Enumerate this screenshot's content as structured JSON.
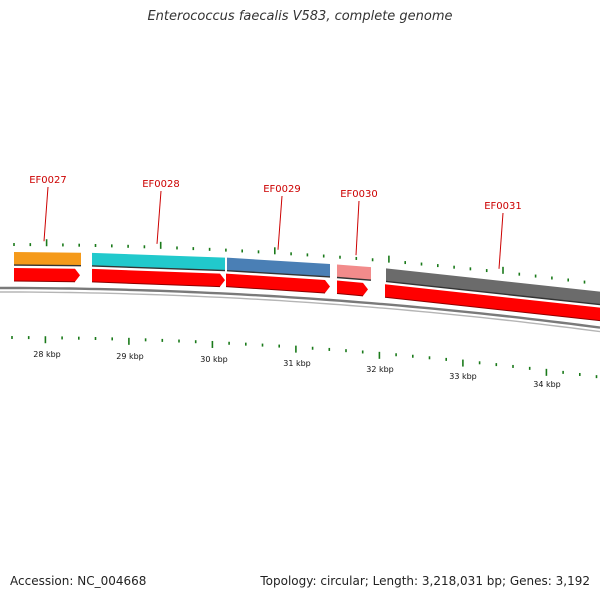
{
  "title": "Enterococcus faecalis V583, complete genome",
  "footer": {
    "accession": "Accession: NC_004668",
    "summary": "Topology: circular; Length: 3,218,031 bp; Genes: 3,192"
  },
  "colors": {
    "backbone": "#7a7a7a",
    "cds": "#ff0000",
    "tick": "#1a7a1a",
    "gene_label": "#cc0000"
  },
  "genes": [
    {
      "id": "g27",
      "label": "EF0027",
      "color": "#f59a1a"
    },
    {
      "id": "g28",
      "label": "EF0028",
      "color": "#21c9cc"
    },
    {
      "id": "g29",
      "label": "EF0029",
      "color": "#4a7fb5"
    },
    {
      "id": "g30",
      "label": "EF0030",
      "color": "#f28b8b"
    },
    {
      "id": "g31",
      "label": "EF0031",
      "color": "#6b6b6b"
    }
  ],
  "scale_labels": [
    "28 kbp",
    "29 kbp",
    "30 kbp",
    "31 kbp",
    "32 kbp",
    "33 kbp",
    "34 kbp"
  ]
}
